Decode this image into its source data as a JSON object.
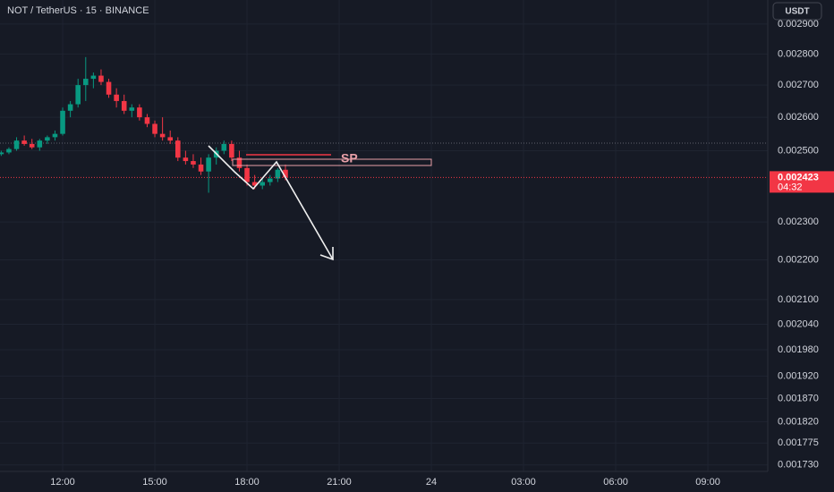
{
  "chart_data": {
    "type": "candlestick",
    "title": "NOT / TetherUS · 15 · BINANCE",
    "currency": "USDT",
    "annotation": "SP",
    "current_price": 0.002423,
    "countdown": "04:32",
    "log_scale": true,
    "grid": true,
    "up_color": "#089981",
    "down_color": "#f23645",
    "x": [
      10,
      10.25,
      10.5,
      10.75,
      11,
      11.25,
      11.5,
      11.75,
      12,
      12.25,
      12.5,
      12.75,
      13,
      13.25,
      13.5,
      13.75,
      14,
      14.25,
      14.5,
      14.75,
      15,
      15.25,
      15.5,
      15.75,
      16,
      16.25,
      16.5,
      16.75,
      17,
      17.25,
      17.5,
      17.75,
      18,
      18.25,
      18.5,
      18.75,
      19,
      19.25
    ],
    "open": [
      0.00249,
      0.002495,
      0.002505,
      0.00253,
      0.00252,
      0.00251,
      0.00253,
      0.00254,
      0.00255,
      0.00262,
      0.00264,
      0.0027,
      0.00272,
      0.00273,
      0.00271,
      0.00267,
      0.00265,
      0.00262,
      0.00263,
      0.0026,
      0.00258,
      0.00255,
      0.00254,
      0.00253,
      0.00248,
      0.00247,
      0.00246,
      0.00244,
      0.00248,
      0.0025,
      0.00252,
      0.00248,
      0.00245,
      0.00241,
      0.0024,
      0.00241,
      0.00242,
      0.002445
    ],
    "high": [
      0.0025,
      0.00251,
      0.00254,
      0.002545,
      0.002535,
      0.002535,
      0.002545,
      0.00256,
      0.00263,
      0.00265,
      0.00272,
      0.00279,
      0.00274,
      0.00275,
      0.00272,
      0.00269,
      0.00267,
      0.00264,
      0.00264,
      0.00261,
      0.00259,
      0.0026,
      0.00256,
      0.00254,
      0.0025,
      0.00249,
      0.00248,
      0.00249,
      0.00251,
      0.00253,
      0.00253,
      0.0025,
      0.00246,
      0.00243,
      0.00242,
      0.00243,
      0.00245,
      0.00246
    ],
    "low": [
      0.002485,
      0.00249,
      0.0025,
      0.002515,
      0.002505,
      0.0025,
      0.00252,
      0.00253,
      0.002545,
      0.0026,
      0.00263,
      0.00265,
      0.00269,
      0.0027,
      0.00266,
      0.00263,
      0.00261,
      0.0026,
      0.00259,
      0.00257,
      0.00254,
      0.00253,
      0.00252,
      0.00247,
      0.00246,
      0.00245,
      0.00243,
      0.00238,
      0.00246,
      0.00249,
      0.00247,
      0.00244,
      0.0024,
      0.00239,
      0.00239,
      0.0024,
      0.00241,
      0.002415
    ],
    "close": [
      0.002495,
      0.002505,
      0.00253,
      0.00252,
      0.00251,
      0.00253,
      0.00254,
      0.00255,
      0.00262,
      0.00264,
      0.0027,
      0.00272,
      0.00273,
      0.00271,
      0.00267,
      0.00265,
      0.00262,
      0.00263,
      0.0026,
      0.00258,
      0.00255,
      0.00254,
      0.00253,
      0.00248,
      0.00247,
      0.00246,
      0.00244,
      0.00248,
      0.0025,
      0.00252,
      0.00248,
      0.00245,
      0.00241,
      0.0024,
      0.00241,
      0.00242,
      0.002445,
      0.002423
    ],
    "xlim": [
      9.96,
      34.95
    ],
    "xticks": [
      {
        "value": 12,
        "label": "12:00"
      },
      {
        "value": 15,
        "label": "15:00"
      },
      {
        "value": 18,
        "label": "18:00"
      },
      {
        "value": 21,
        "label": "21:00"
      },
      24,
      {
        "value": 27,
        "label": "03:00"
      },
      {
        "value": 30,
        "label": "06:00"
      },
      {
        "value": 33,
        "label": "09:00"
      }
    ],
    "ylim": [
      0.001717,
      0.002983
    ],
    "yticks": [
      {
        "value": 0.0029,
        "label": "0.002900"
      },
      {
        "value": 0.0028,
        "label": "0.002800"
      },
      {
        "value": 0.0027,
        "label": "0.002700"
      },
      {
        "value": 0.0026,
        "label": "0.002600"
      },
      {
        "value": 0.0025,
        "label": "0.002500"
      },
      {
        "value": 0.0023,
        "label": "0.002300"
      },
      {
        "value": 0.0022,
        "label": "0.002200"
      },
      {
        "value": 0.0021,
        "label": "0.002100"
      },
      {
        "value": 0.00204,
        "label": "0.002040"
      },
      {
        "value": 0.00198,
        "label": "0.001980"
      },
      {
        "value": 0.00192,
        "label": "0.001920"
      },
      {
        "value": 0.00187,
        "label": "0.001870"
      },
      {
        "value": 0.00182,
        "label": "0.001820"
      },
      {
        "value": 0.001775,
        "label": "0.001775"
      },
      {
        "value": 0.00173,
        "label": "0.001730"
      }
    ]
  }
}
